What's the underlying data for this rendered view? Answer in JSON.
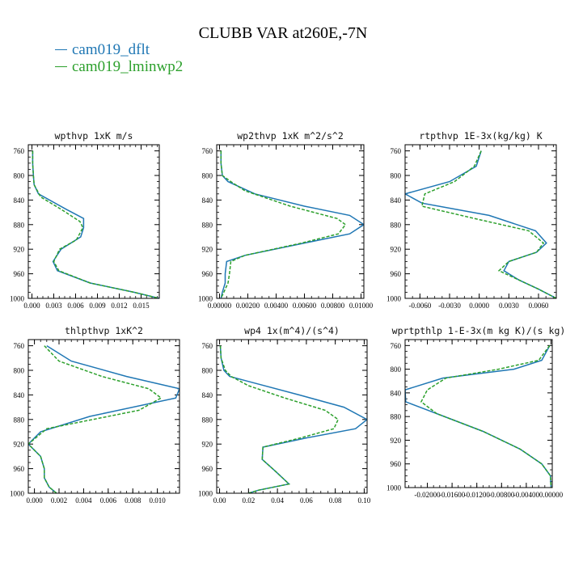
{
  "title": "CLUBB VAR at260E,-7N",
  "legend": [
    {
      "label": "cam019_dflt",
      "color": "#1f77b4"
    },
    {
      "label": "cam019_lminwp2",
      "color": "#2ca02c"
    }
  ],
  "chart_data": [
    {
      "type": "line",
      "title": "wpthvp  1xK m/s",
      "xlim": [
        -0.0005,
        0.0175
      ],
      "ylim": [
        1000,
        750
      ],
      "xticks": [
        "0.000",
        "0.003",
        "0.006",
        "0.009",
        "0.012",
        "0.015"
      ],
      "xtick_values": [
        0,
        0.003,
        0.006,
        0.009,
        0.012,
        0.015
      ],
      "yticks": [
        "760",
        "800",
        "840",
        "880",
        "920",
        "960",
        "1000"
      ],
      "ytick_values": [
        760,
        800,
        840,
        880,
        920,
        960,
        1000
      ],
      "series": [
        {
          "name": "cam019_dflt",
          "x": [
            0.0001,
            0.0001,
            0.0002,
            0.0003,
            0.0009,
            0.0047,
            0.0071,
            0.0071,
            0.0067,
            0.004,
            0.0029,
            0.0035,
            0.008,
            0.014,
            0.0175
          ],
          "y": [
            760,
            780,
            800,
            815,
            830,
            855,
            870,
            885,
            900,
            920,
            940,
            955,
            975,
            990,
            1000
          ]
        },
        {
          "name": "cam019_lminwp2",
          "x": [
            0.0001,
            0.0001,
            0.0002,
            0.0003,
            0.0012,
            0.004,
            0.0066,
            0.007,
            0.0061,
            0.0038,
            0.003,
            0.0037,
            0.008,
            0.014,
            0.0175
          ],
          "y": [
            760,
            780,
            800,
            815,
            835,
            855,
            875,
            885,
            905,
            920,
            940,
            955,
            975,
            990,
            1000
          ]
        }
      ]
    },
    {
      "type": "line",
      "title": "wp2thvp  1xK m^2/s^2",
      "xlim": [
        -0.0002,
        0.0102
      ],
      "ylim": [
        1000,
        750
      ],
      "xticks": [
        "0.00000",
        "0.00200",
        "0.00400",
        "0.00600",
        "0.00800",
        "0.01000"
      ],
      "xtick_values": [
        0,
        0.002,
        0.004,
        0.006,
        0.008,
        0.01
      ],
      "yticks": [
        "760",
        "800",
        "840",
        "880",
        "920",
        "960",
        "1000"
      ],
      "ytick_values": [
        760,
        800,
        840,
        880,
        920,
        960,
        1000
      ],
      "series": [
        {
          "name": "cam019_dflt",
          "x": [
            0.0001,
            0.0001,
            0.0002,
            0.0006,
            0.0025,
            0.006,
            0.0092,
            0.0102,
            0.0092,
            0.006,
            0.0018,
            0.0005,
            0.0004,
            0.0004,
            0.0002,
            0.0001
          ],
          "y": [
            760,
            780,
            800,
            810,
            830,
            850,
            865,
            880,
            895,
            910,
            930,
            940,
            960,
            975,
            990,
            1000
          ]
        },
        {
          "name": "cam019_lminwp2",
          "x": [
            0.0001,
            0.0001,
            0.0002,
            0.0008,
            0.0018,
            0.005,
            0.0083,
            0.0089,
            0.0084,
            0.0058,
            0.0018,
            0.0008,
            0.0007,
            0.0006,
            0.0003,
            0.0001
          ],
          "y": [
            760,
            780,
            800,
            810,
            825,
            850,
            870,
            880,
            895,
            910,
            930,
            940,
            960,
            975,
            990,
            1000
          ]
        }
      ]
    },
    {
      "type": "line",
      "title": "rtpthvp  1E-3x(kg/kg) K",
      "xlim": [
        -0.0075,
        0.0078
      ],
      "ylim": [
        1000,
        750
      ],
      "xticks": [
        "-0.0060",
        "-0.0030",
        "0.0000",
        "0.0030",
        "0.0060"
      ],
      "xtick_values": [
        -0.006,
        -0.003,
        0,
        0.003,
        0.006
      ],
      "yticks": [
        "760",
        "800",
        "840",
        "880",
        "920",
        "960",
        "1000"
      ],
      "ytick_values": [
        760,
        800,
        840,
        880,
        920,
        960,
        1000
      ],
      "series": [
        {
          "name": "cam019_dflt",
          "x": [
            0.0002,
            -0.0003,
            -0.003,
            -0.0075,
            -0.0058,
            0.001,
            0.0057,
            0.0068,
            0.0058,
            0.003,
            0.0025,
            0.004,
            0.006,
            0.0078
          ],
          "y": [
            760,
            785,
            810,
            830,
            845,
            865,
            890,
            910,
            925,
            940,
            955,
            970,
            985,
            1000
          ]
        },
        {
          "name": "cam019_lminwp2",
          "x": [
            0.0002,
            -0.0005,
            -0.0025,
            -0.0055,
            -0.0058,
            -0.0005,
            0.005,
            0.0065,
            0.0058,
            0.003,
            0.002,
            0.004,
            0.006,
            0.0078
          ],
          "y": [
            760,
            785,
            810,
            830,
            850,
            870,
            890,
            910,
            925,
            940,
            955,
            970,
            985,
            1000
          ]
        }
      ]
    },
    {
      "type": "line",
      "title": "thlpthvp  1xK^2",
      "xlim": [
        -0.0005,
        0.0118
      ],
      "ylim": [
        1000,
        750
      ],
      "xticks": [
        "0.000",
        "0.002",
        "0.004",
        "0.006",
        "0.008",
        "0.010"
      ],
      "xtick_values": [
        0,
        0.002,
        0.004,
        0.006,
        0.008,
        0.01
      ],
      "yticks": [
        "760",
        "800",
        "840",
        "880",
        "920",
        "960",
        "1000"
      ],
      "ytick_values": [
        760,
        800,
        840,
        880,
        920,
        960,
        1000
      ],
      "series": [
        {
          "name": "cam019_dflt",
          "x": [
            0.001,
            0.003,
            0.0075,
            0.0118,
            0.0115,
            0.0045,
            0.0005,
            -0.0005,
            0.0005,
            0.0008,
            0.0008,
            0.0012,
            0.0018
          ],
          "y": [
            760,
            785,
            810,
            830,
            845,
            875,
            900,
            920,
            940,
            960,
            975,
            990,
            1000
          ]
        },
        {
          "name": "cam019_lminwp2",
          "x": [
            0.0008,
            0.002,
            0.0055,
            0.0093,
            0.0103,
            0.0085,
            0.001,
            -0.0005,
            0.0005,
            0.0008,
            0.0008,
            0.0012,
            0.0018
          ],
          "y": [
            760,
            785,
            810,
            830,
            845,
            865,
            895,
            920,
            940,
            960,
            975,
            990,
            1000
          ]
        }
      ]
    },
    {
      "type": "line",
      "title": "wp4  1x(m^4)/(s^4)",
      "xlim": [
        -0.002,
        0.102
      ],
      "ylim": [
        1000,
        750
      ],
      "xticks": [
        "0.00",
        "0.02",
        "0.04",
        "0.06",
        "0.08",
        "0.10"
      ],
      "xtick_values": [
        0,
        0.02,
        0.04,
        0.06,
        0.08,
        0.1
      ],
      "yticks": [
        "760",
        "800",
        "840",
        "880",
        "920",
        "960",
        "1000"
      ],
      "ytick_values": [
        760,
        800,
        840,
        880,
        920,
        960,
        1000
      ],
      "series": [
        {
          "name": "cam019_dflt",
          "x": [
            0.0005,
            0.001,
            0.003,
            0.007,
            0.023,
            0.055,
            0.086,
            0.102,
            0.094,
            0.06,
            0.03,
            0.0295,
            0.039,
            0.048,
            0.027,
            0.02
          ],
          "y": [
            760,
            780,
            800,
            810,
            820,
            840,
            860,
            880,
            895,
            910,
            925,
            945,
            965,
            985,
            995,
            1000
          ]
        },
        {
          "name": "cam019_lminwp2",
          "x": [
            0.0005,
            0.001,
            0.004,
            0.008,
            0.02,
            0.045,
            0.073,
            0.082,
            0.079,
            0.056,
            0.03,
            0.0295,
            0.039,
            0.048,
            0.027,
            0.02
          ],
          "y": [
            760,
            780,
            800,
            810,
            825,
            845,
            865,
            880,
            895,
            910,
            925,
            945,
            965,
            985,
            995,
            1000
          ]
        }
      ]
    },
    {
      "type": "line",
      "title": "wprtpthlp  1-E-3x(m kg K)/(s kg)",
      "xlim": [
        -0.0236,
        0.0002
      ],
      "ylim": [
        1000,
        750
      ],
      "xticks": [
        "-0.02000",
        "-0.01600",
        "-0.01200",
        "-0.00800",
        "-0.00400",
        "0.00000"
      ],
      "xtick_values": [
        -0.02,
        -0.016,
        -0.012,
        -0.008,
        -0.004,
        0.0
      ],
      "yticks": [
        "760",
        "800",
        "840",
        "880",
        "920",
        "960",
        "1000"
      ],
      "ytick_values": [
        760,
        800,
        840,
        880,
        920,
        960,
        1000
      ],
      "series": [
        {
          "name": "cam019_dflt",
          "x": [
            -0.0002,
            -0.0015,
            -0.006,
            -0.0175,
            -0.0236,
            -0.0235,
            -0.0185,
            -0.011,
            -0.005,
            -0.0015,
            -0.0001,
            0.0
          ],
          "y": [
            760,
            785,
            800,
            815,
            835,
            855,
            875,
            905,
            935,
            960,
            980,
            1000
          ]
        },
        {
          "name": "cam019_lminwp2",
          "x": [
            -0.0002,
            -0.002,
            -0.0085,
            -0.017,
            -0.02,
            -0.021,
            -0.0185,
            -0.011,
            -0.005,
            -0.0015,
            -0.0001,
            0.0
          ],
          "y": [
            760,
            785,
            800,
            815,
            835,
            855,
            875,
            905,
            935,
            960,
            980,
            1000
          ]
        }
      ]
    }
  ]
}
